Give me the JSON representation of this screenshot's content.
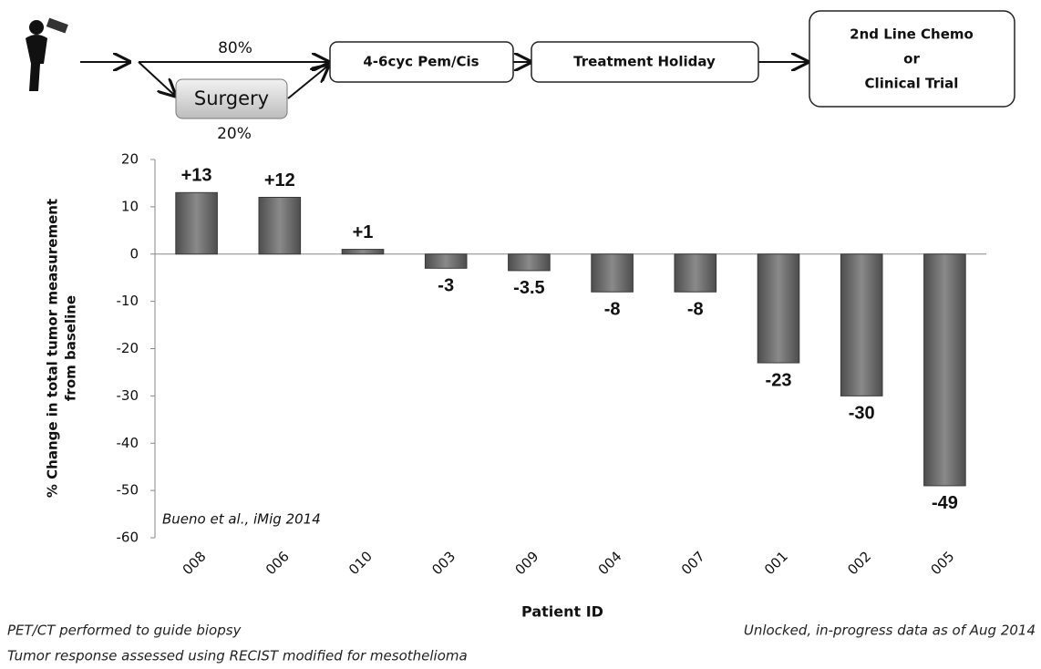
{
  "diagram": {
    "split_top": "80%",
    "surgery": "Surgery",
    "split_bottom": "20%",
    "steps": [
      "4-6cyc Pem/Cis",
      "Treatment Holiday"
    ],
    "final": [
      "2nd Line Chemo",
      "or",
      "Clinical Trial"
    ]
  },
  "chart_data": {
    "type": "bar",
    "categories": [
      "008",
      "006",
      "010",
      "003",
      "009",
      "004",
      "007",
      "001",
      "002",
      "005"
    ],
    "values": [
      13,
      12,
      1,
      -3,
      -3.5,
      -8,
      -8,
      -23,
      -30,
      -49
    ],
    "value_labels": [
      "+13",
      "+12",
      "+1",
      "-3",
      "-3.5",
      "-8",
      "-8",
      "-23",
      "-30",
      "-49"
    ],
    "color": "#6e6e6e",
    "ylim": [
      -60,
      20
    ],
    "yticks": [
      -60,
      -50,
      -40,
      -30,
      -20,
      -10,
      0,
      10,
      20
    ],
    "ylabel": [
      "% Change in total tumor measurement",
      "from baseline"
    ],
    "xlabel": "Patient ID",
    "annotation": "Bueno et al., iMig 2014"
  },
  "footnotes": {
    "left": [
      "PET/CT performed to guide biopsy",
      "Tumor response assessed using RECIST modified for mesothelioma"
    ],
    "right": "Unlocked, in-progress data as of Aug 2014"
  }
}
